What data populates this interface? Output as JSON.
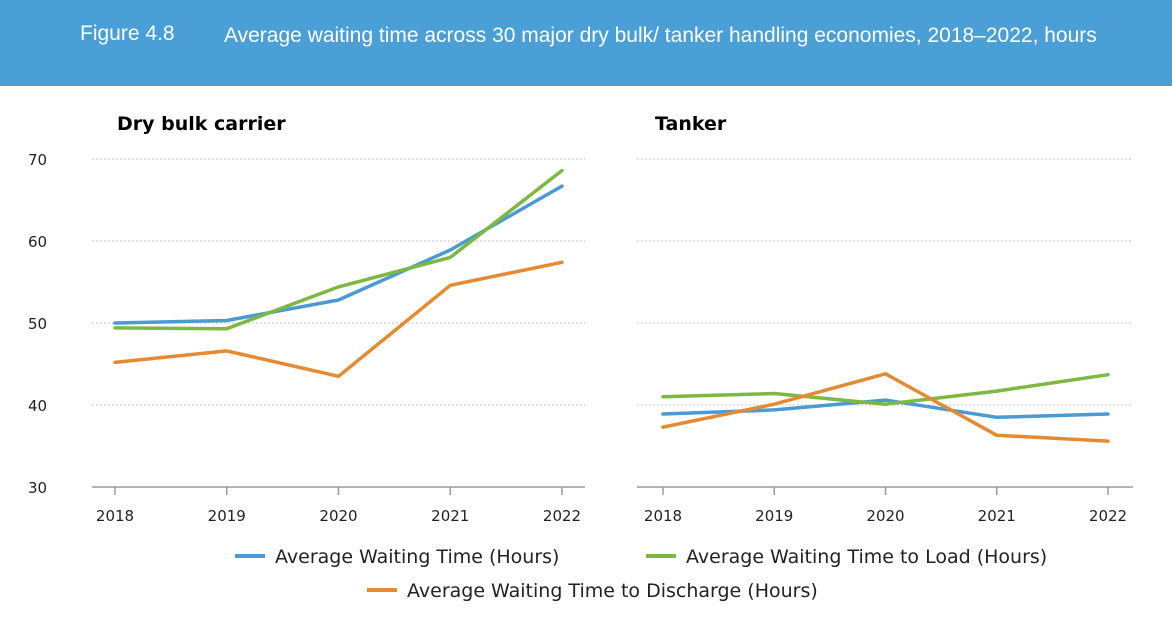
{
  "figure": {
    "number": "Figure 4.8",
    "title": "Average waiting time across 30 major dry bulk/ tanker handling economies, 2018–2022, hours"
  },
  "chart_data": [
    {
      "type": "line",
      "title": "Dry bulk carrier",
      "x": [
        "2018",
        "2019",
        "2020",
        "2021",
        "2022"
      ],
      "ylim": [
        30,
        70
      ],
      "yticks": [
        30,
        40,
        50,
        60,
        70
      ],
      "grid": true,
      "series": [
        {
          "name": "Average Waiting Time (Hours)",
          "color": "#4a9ad4",
          "values": [
            50.0,
            50.3,
            52.8,
            58.9,
            66.7
          ]
        },
        {
          "name": "Average Waiting Time to Load (Hours)",
          "color": "#7db843",
          "values": [
            49.4,
            49.3,
            54.4,
            58.0,
            68.6
          ]
        },
        {
          "name": "Average Waiting Time to Discharge (Hours)",
          "color": "#e68a32",
          "values": [
            45.2,
            46.6,
            43.5,
            54.6,
            57.4
          ]
        }
      ]
    },
    {
      "type": "line",
      "title": "Tanker",
      "x": [
        "2018",
        "2019",
        "2020",
        "2021",
        "2022"
      ],
      "ylim": [
        30,
        70
      ],
      "yticks": [],
      "grid": true,
      "series": [
        {
          "name": "Average Waiting Time (Hours)",
          "color": "#4a9ad4",
          "values": [
            38.9,
            39.4,
            40.6,
            38.5,
            38.9
          ]
        },
        {
          "name": "Average Waiting Time to Load (Hours)",
          "color": "#7db843",
          "values": [
            41.0,
            41.4,
            40.1,
            41.7,
            43.7
          ]
        },
        {
          "name": "Average Waiting Time to Discharge (Hours)",
          "color": "#e68a32",
          "values": [
            37.3,
            40.1,
            43.8,
            36.3,
            35.6
          ]
        }
      ]
    }
  ],
  "legend": [
    {
      "label": "Average Waiting Time (Hours)",
      "color": "#4a9ad4"
    },
    {
      "label": "Average Waiting Time to Load (Hours)",
      "color": "#7db843"
    },
    {
      "label": "Average Waiting Time to Discharge (Hours)",
      "color": "#e68a32"
    }
  ]
}
